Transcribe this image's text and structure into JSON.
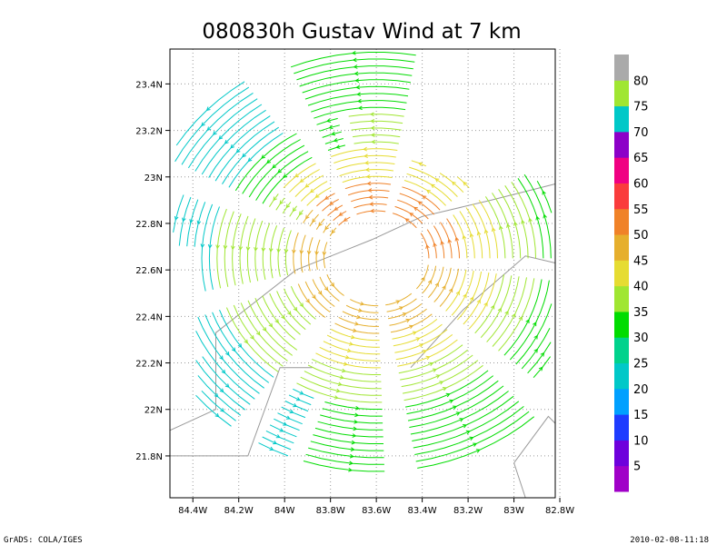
{
  "chart_data": {
    "type": "streamline",
    "title": "080830h Gustav Wind at 7 km",
    "xlabel": "",
    "ylabel": "",
    "x_ticks": [
      "84.4W",
      "84.2W",
      "84W",
      "83.8W",
      "83.6W",
      "83.4W",
      "83.2W",
      "83W",
      "82.8W"
    ],
    "x_tick_values": [
      -84.4,
      -84.2,
      -84.0,
      -83.8,
      -83.6,
      -83.4,
      -83.2,
      -83.0,
      -82.8
    ],
    "y_ticks": [
      "21.8N",
      "22N",
      "22.2N",
      "22.4N",
      "22.6N",
      "22.8N",
      "23N",
      "23.2N",
      "23.4N"
    ],
    "y_tick_values": [
      21.8,
      22.0,
      22.2,
      22.4,
      22.6,
      22.8,
      23.0,
      23.2,
      23.4
    ],
    "xlim": [
      -84.5,
      -82.82
    ],
    "ylim": [
      21.62,
      23.55
    ],
    "grid": true,
    "storm_center": {
      "lon": -83.6,
      "lat": 22.65
    },
    "colorbar": {
      "placement": "right",
      "labels": [
        "5",
        "10",
        "15",
        "20",
        "25",
        "30",
        "35",
        "40",
        "45",
        "50",
        "55",
        "60",
        "65",
        "70",
        "75",
        "80"
      ],
      "colors": [
        "#a000c8",
        "#6e00dc",
        "#1e3cff",
        "#00a0ff",
        "#00c8c8",
        "#00d28c",
        "#00dc00",
        "#a0e632",
        "#e6dc32",
        "#e6af2d",
        "#f08228",
        "#fa3c3c",
        "#f00082",
        "#8c00c8",
        "#00c8c8",
        "#a0e632",
        "#aaaaaa"
      ]
    },
    "coastline": [
      [
        [
          -84.5,
          21.8
        ],
        [
          -84.16,
          21.8
        ],
        [
          -84.02,
          22.18
        ],
        [
          -83.88,
          22.18
        ]
      ],
      [
        [
          -84.5,
          21.91
        ],
        [
          -84.3,
          22.0
        ],
        [
          -84.3,
          22.33
        ],
        [
          -83.95,
          22.6
        ],
        [
          -83.62,
          22.73
        ],
        [
          -83.4,
          22.83
        ],
        [
          -83.1,
          22.9
        ],
        [
          -82.82,
          22.97
        ]
      ],
      [
        [
          -83.45,
          22.18
        ],
        [
          -83.22,
          22.43
        ],
        [
          -82.95,
          22.66
        ],
        [
          -82.82,
          22.63
        ]
      ],
      [
        [
          -83.0,
          21.77
        ],
        [
          -82.85,
          21.97
        ],
        [
          -82.82,
          21.94
        ]
      ],
      [
        [
          -83.0,
          21.77
        ],
        [
          -82.95,
          21.62
        ]
      ]
    ]
  },
  "footer": {
    "left": "GrADS: COLA/IGES",
    "right": "2010-02-08-11:18"
  }
}
